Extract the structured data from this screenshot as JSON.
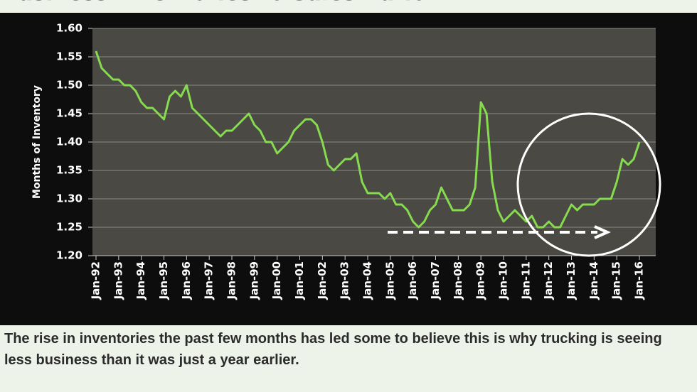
{
  "chart_data": {
    "type": "line",
    "title": "Business Inventories to Sales Ratio",
    "y_label": "Months of Inventory",
    "caption": "The rise in inventories the past few months has led some to believe this is why trucking is seeing less business than it was just a year earlier.",
    "categories": [
      "Jan-92",
      null,
      null,
      null,
      "Jan-93",
      null,
      null,
      null,
      "Jan-94",
      null,
      null,
      null,
      "Jan-95",
      null,
      null,
      null,
      "Jan-96",
      null,
      null,
      null,
      "Jan-97",
      null,
      null,
      null,
      "Jan-98",
      null,
      null,
      null,
      "Jan-99",
      null,
      null,
      null,
      "Jan-00",
      null,
      null,
      null,
      "Jan-01",
      null,
      null,
      null,
      "Jan-02",
      null,
      null,
      null,
      "Jan-03",
      null,
      null,
      null,
      "Jan-04",
      null,
      null,
      null,
      "Jan-05",
      null,
      null,
      null,
      "Jan-06",
      null,
      null,
      null,
      "Jan-07",
      null,
      null,
      null,
      "Jan-08",
      null,
      null,
      null,
      "Jan-09",
      null,
      null,
      null,
      "Jan-10",
      null,
      null,
      null,
      "Jan-11",
      null,
      null,
      null,
      "Jan-12",
      null,
      null,
      null,
      "Jan-13",
      null,
      null,
      null,
      "Jan-14",
      null,
      null,
      null,
      "Jan-15",
      null,
      null,
      null,
      "Jan-16"
    ],
    "series": [
      {
        "name": "Months of Inventory",
        "color": "#86db4f",
        "values": [
          1.56,
          1.53,
          1.52,
          1.51,
          1.51,
          1.5,
          1.5,
          1.49,
          1.47,
          1.46,
          1.46,
          1.45,
          1.44,
          1.48,
          1.49,
          1.48,
          1.5,
          1.46,
          1.45,
          1.44,
          1.43,
          1.42,
          1.41,
          1.42,
          1.42,
          1.43,
          1.44,
          1.45,
          1.43,
          1.42,
          1.4,
          1.4,
          1.38,
          1.39,
          1.4,
          1.42,
          1.43,
          1.44,
          1.44,
          1.43,
          1.4,
          1.36,
          1.35,
          1.36,
          1.37,
          1.37,
          1.38,
          1.33,
          1.31,
          1.31,
          1.31,
          1.3,
          1.31,
          1.29,
          1.29,
          1.28,
          1.26,
          1.25,
          1.26,
          1.28,
          1.29,
          1.32,
          1.3,
          1.28,
          1.28,
          1.28,
          1.29,
          1.32,
          1.47,
          1.45,
          1.33,
          1.28,
          1.26,
          1.27,
          1.28,
          1.27,
          1.26,
          1.27,
          1.25,
          1.25,
          1.26,
          1.25,
          1.25,
          1.27,
          1.29,
          1.28,
          1.29,
          1.29,
          1.29,
          1.3,
          1.3,
          1.3,
          1.33,
          1.37,
          1.36,
          1.37,
          1.4
        ]
      }
    ],
    "ylim": [
      1.2,
      1.6
    ],
    "yticks": [
      {
        "value": 1.2,
        "label": "1.20"
      },
      1.25,
      {
        "value": 1.3,
        "label": "1.30"
      },
      1.35,
      {
        "value": 1.4,
        "label": "1.40"
      },
      1.45,
      {
        "value": 1.5,
        "label": "1.50"
      },
      1.55,
      {
        "value": 1.6,
        "label": "1.60"
      }
    ],
    "grid": true
  }
}
